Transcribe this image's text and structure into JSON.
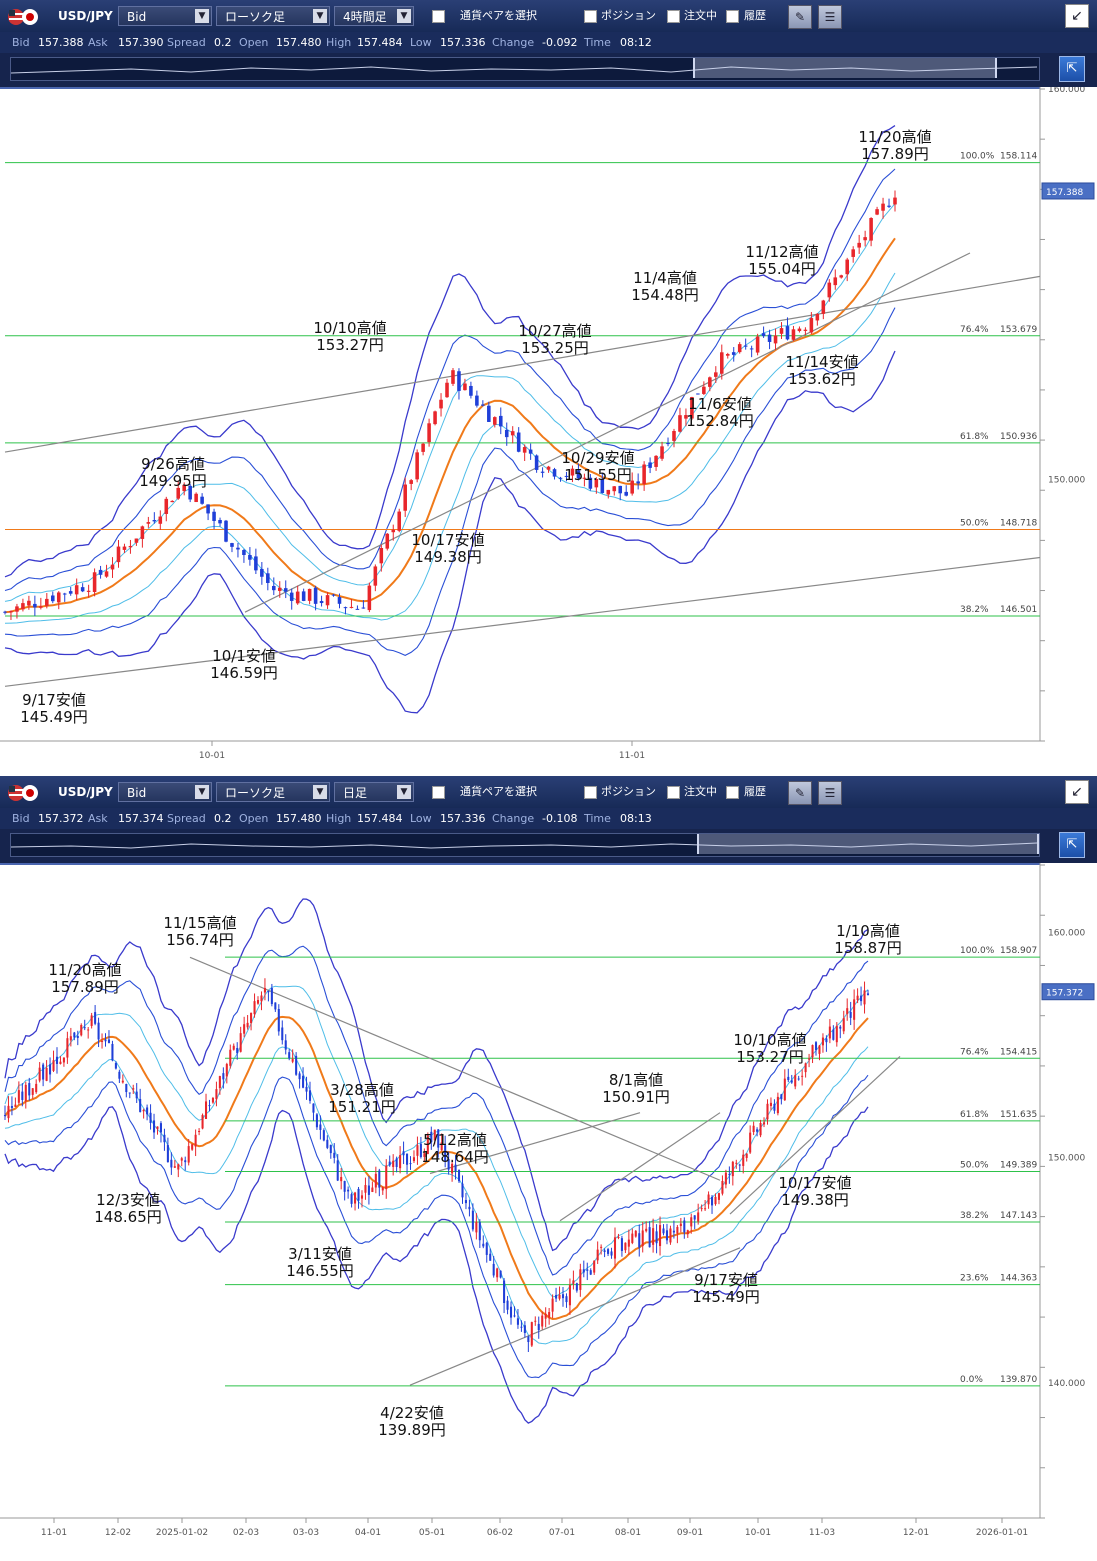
{
  "panels": [
    {
      "id": "p1",
      "toolbar": {
        "symbol": "USD/JPY",
        "price_type": "Bid",
        "chart_kind": "ローソク足",
        "timeframe": "4時間足",
        "pair_select": "通貨ペアを選択",
        "chk_position": "ポジション",
        "chk_orders": "注文中",
        "chk_history": "履歴"
      },
      "quote": {
        "bid_label": "Bid",
        "bid": "157.388",
        "ask_label": "Ask",
        "ask": "157.390",
        "spread_label": "Spread",
        "spread": "0.2",
        "open_label": "Open",
        "open": "157.480",
        "high_label": "High",
        "high": "157.484",
        "low_label": "Low",
        "low": "157.336",
        "change_label": "Change",
        "change": "-0.092",
        "time_label": "Time",
        "time": "08:12"
      },
      "price_marker": "157.388",
      "chart_data": {
        "type": "line",
        "title": "",
        "x_ticks": [
          "10-01",
          "11-01"
        ],
        "y_ticks": [
          "160.000",
          "150.000"
        ],
        "y_top_label": "160.000",
        "ylim": [
          143.3,
          160.0
        ],
        "fib_levels": [
          {
            "label": "100.0%",
            "value": "158.114"
          },
          {
            "label": "76.4%",
            "value": "153.679"
          },
          {
            "label": "61.8%",
            "value": "150.936"
          },
          {
            "label": "50.0%",
            "value": "148.718"
          },
          {
            "label": "38.2%",
            "value": "146.501"
          }
        ],
        "series": [
          {
            "values_hint": "4-hour close",
            "x": [
              0,
              10,
              20,
              30,
              40,
              50,
              60,
              70,
              80,
              90,
              100
            ],
            "y": [
              146.6,
              147.4,
              149.9,
              147.2,
              146.7,
              152.7,
              150.4,
              149.6,
              153.0,
              154.0,
              157.39
            ]
          }
        ],
        "annotations": [
          {
            "text": "11/20高値",
            "sub": "157.89円"
          },
          {
            "text": "11/12高値",
            "sub": "155.04円"
          },
          {
            "text": "11/4高値",
            "sub": "154.48円"
          },
          {
            "text": "10/10高値",
            "sub": "153.27円"
          },
          {
            "text": "10/27高値",
            "sub": "153.25円"
          },
          {
            "text": "11/14安値",
            "sub": "153.62円"
          },
          {
            "text": "11/6安値",
            "sub": "152.84円"
          },
          {
            "text": "9/26高値",
            "sub": "149.95円"
          },
          {
            "text": "10/29安値",
            "sub": "151.55円"
          },
          {
            "text": "10/17安値",
            "sub": "149.38円"
          },
          {
            "text": "10/1安値",
            "sub": "146.59円"
          },
          {
            "text": "9/17安値",
            "sub": "145.49円"
          }
        ]
      }
    },
    {
      "id": "p2",
      "toolbar": {
        "symbol": "USD/JPY",
        "price_type": "Bid",
        "chart_kind": "ローソク足",
        "timeframe": "日足",
        "pair_select": "通貨ペアを選択",
        "chk_position": "ポジション",
        "chk_orders": "注文中",
        "chk_history": "履歴"
      },
      "quote": {
        "bid_label": "Bid",
        "bid": "157.372",
        "ask_label": "Ask",
        "ask": "157.374",
        "spread_label": "Spread",
        "spread": "0.2",
        "open_label": "Open",
        "open": "157.480",
        "high_label": "High",
        "high": "157.484",
        "low_label": "Low",
        "low": "157.336",
        "change_label": "Change",
        "change": "-0.108",
        "time_label": "Time",
        "time": "08:13"
      },
      "price_marker": "157.372",
      "chart_data": {
        "type": "line",
        "title": "",
        "x_ticks": [
          "11-01",
          "12-02",
          "2025-01-02",
          "02-03",
          "03-03",
          "04-01",
          "05-01",
          "06-02",
          "07-01",
          "08-01",
          "09-01",
          "10-01",
          "11-03",
          "12-01",
          "2026-01-01"
        ],
        "y_ticks": [
          "160.000",
          "150.000",
          "140.000"
        ],
        "ylim": [
          134.0,
          163.0
        ],
        "fib_levels": [
          {
            "label": "100.0%",
            "value": "158.907"
          },
          {
            "label": "76.4%",
            "value": "154.415"
          },
          {
            "label": "61.8%",
            "value": "151.635"
          },
          {
            "label": "50.0%",
            "value": "149.389"
          },
          {
            "label": "38.2%",
            "value": "147.143"
          },
          {
            "label": "23.6%",
            "value": "144.363"
          },
          {
            "label": "0.0%",
            "value": "139.870"
          }
        ],
        "series": [
          {
            "values_hint": "daily close",
            "x": [
              0,
              10,
              20,
              30,
              40,
              50,
              60,
              70,
              80,
              90,
              100
            ],
            "y": [
              152.0,
              156.0,
              149.5,
              157.5,
              148.0,
              151.0,
              142.0,
              146.0,
              147.0,
              153.0,
              157.37
            ]
          }
        ],
        "annotations": [
          {
            "text": "1/10高値",
            "sub": "158.87円"
          },
          {
            "text": "11/15高値",
            "sub": "156.74円"
          },
          {
            "text": "11/20高値",
            "sub": "157.89円"
          },
          {
            "text": "10/10高値",
            "sub": "153.27円"
          },
          {
            "text": "3/28高値",
            "sub": "151.21円"
          },
          {
            "text": "8/1高値",
            "sub": "150.91円"
          },
          {
            "text": "5/12高値",
            "sub": "148.64円"
          },
          {
            "text": "10/17安値",
            "sub": "149.38円"
          },
          {
            "text": "12/3安値",
            "sub": "148.65円"
          },
          {
            "text": "3/11安値",
            "sub": "146.55円"
          },
          {
            "text": "9/17安値",
            "sub": "145.49円"
          },
          {
            "text": "4/22安値",
            "sub": "139.89円"
          }
        ]
      }
    }
  ],
  "colors": {
    "up": "#e8262b",
    "down": "#1f3fd8",
    "ma_orange": "#f07a1a",
    "band_outer": "#3a3acc",
    "band_mid": "#2a4fd6",
    "band_inner": "#4fbde8",
    "fib": "#2ec24a",
    "fib_orange": "#f07a1a",
    "trend": "#888888"
  }
}
